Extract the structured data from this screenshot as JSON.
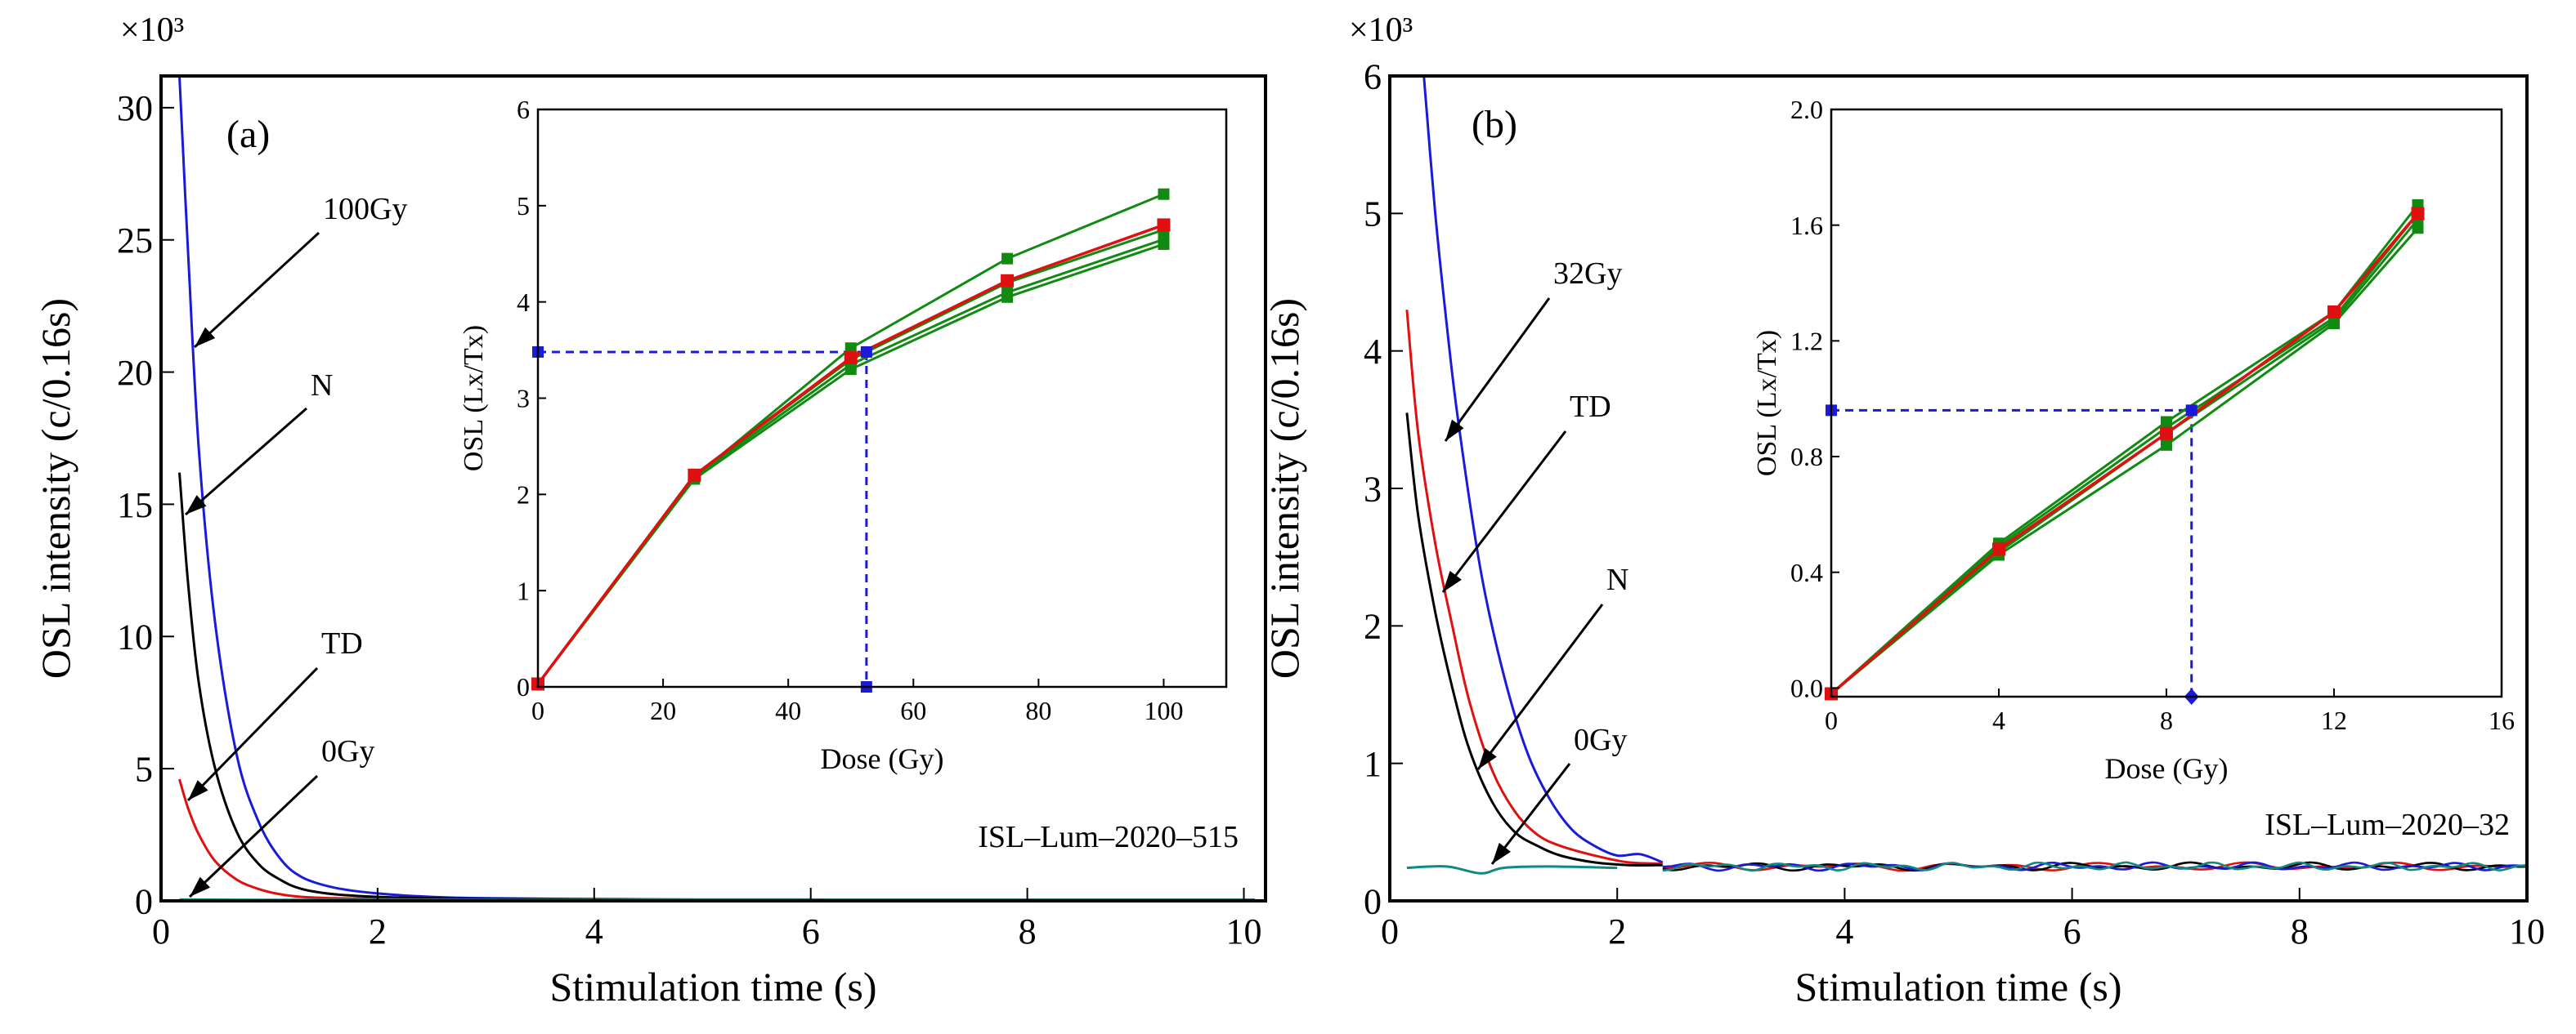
{
  "chart_data": [
    {
      "type": "line",
      "panel_label": "(a)",
      "xlabel": "Stimulation time (s)",
      "ylabel": "OSL intensity (c/0.16s)",
      "y_multiplier": "×10³",
      "xlim": [
        0,
        10.2
      ],
      "ylim": [
        0,
        31.2
      ],
      "xticks": [
        0,
        2,
        4,
        6,
        8,
        10
      ],
      "yticks": [
        0,
        5,
        10,
        15,
        20,
        25,
        30
      ],
      "sample_id": "ISL–Lum–2020–515",
      "colors": {
        "100Gy": "#1a1ad8",
        "N": "#000000",
        "TD": "#e01010",
        "0Gy": "#108a80"
      },
      "series": [
        {
          "name": "100Gy",
          "color": "#1a1ad8",
          "x": [
            0.17,
            0.25,
            0.35,
            0.5,
            0.7,
            0.9,
            1.1,
            1.3,
            1.6,
            2.0,
            2.5,
            3,
            4,
            5,
            6,
            7,
            8,
            9,
            10.1
          ],
          "y": [
            31.2,
            24.5,
            17,
            10.5,
            5.5,
            3.0,
            1.6,
            0.9,
            0.5,
            0.28,
            0.15,
            0.1,
            0.07,
            0.05,
            0.05,
            0.04,
            0.04,
            0.04,
            0.04
          ]
        },
        {
          "name": "N",
          "color": "#000000",
          "x": [
            0.17,
            0.25,
            0.35,
            0.5,
            0.7,
            0.9,
            1.1,
            1.3,
            1.6,
            2.0,
            2.5,
            3,
            4,
            5,
            6,
            8,
            10.1
          ],
          "y": [
            16.2,
            12.0,
            8.2,
            5.0,
            2.6,
            1.4,
            0.8,
            0.45,
            0.25,
            0.15,
            0.1,
            0.07,
            0.05,
            0.04,
            0.04,
            0.04,
            0.04
          ]
        },
        {
          "name": "TD",
          "color": "#e01010",
          "x": [
            0.17,
            0.25,
            0.35,
            0.5,
            0.7,
            0.9,
            1.1,
            1.3,
            1.6,
            2.0,
            2.5,
            3,
            4,
            6,
            8,
            10.1
          ],
          "y": [
            4.6,
            3.5,
            2.5,
            1.5,
            0.8,
            0.45,
            0.25,
            0.15,
            0.1,
            0.07,
            0.05,
            0.04,
            0.04,
            0.04,
            0.04,
            0.04
          ]
        },
        {
          "name": "0Gy",
          "color": "#108a80",
          "x": [
            0.17,
            1,
            2,
            4,
            6,
            8,
            10.1
          ],
          "y": [
            0.05,
            0.04,
            0.04,
            0.04,
            0.04,
            0.04,
            0.04
          ]
        }
      ],
      "curve_labels": [
        "100Gy",
        "N",
        "TD",
        "0Gy"
      ],
      "inset": {
        "type": "line",
        "xlabel": "Dose (Gy)",
        "ylabel": "OSL (Lx/Tx)",
        "xlim": [
          0,
          110
        ],
        "ylim": [
          0,
          6
        ],
        "xticks": [
          0,
          20,
          40,
          60,
          80,
          100
        ],
        "yticks": [
          0,
          1,
          2,
          3,
          4,
          5,
          6
        ],
        "doses": [
          0,
          25,
          50,
          75,
          100
        ],
        "green_series": [
          [
            0.03,
            2.18,
            3.52,
            4.45,
            5.12
          ],
          [
            0.03,
            2.2,
            3.4,
            4.2,
            4.75
          ],
          [
            0.03,
            2.18,
            3.35,
            4.1,
            4.65
          ],
          [
            0.03,
            2.16,
            3.3,
            4.05,
            4.6
          ]
        ],
        "red_series": [
          0.03,
          2.2,
          3.42,
          4.22,
          4.8
        ],
        "interpolation": {
          "dose": 52.5,
          "lxtx": 3.48
        },
        "colors": {
          "green": "#108a10",
          "red": "#e01010",
          "guide": "#1a1ad8"
        }
      }
    },
    {
      "type": "line",
      "panel_label": "(b)",
      "xlabel": "Stimulation time (s)",
      "ylabel": "OSL intensity (c/0.16s)",
      "y_multiplier": "×10³",
      "xlim": [
        0,
        10
      ],
      "ylim": [
        0,
        6
      ],
      "xticks": [
        0,
        2,
        4,
        6,
        8,
        10
      ],
      "yticks": [
        0,
        1,
        2,
        3,
        4,
        5,
        6
      ],
      "sample_id": "ISL–Lum–2020–32",
      "colors": {
        "32Gy": "#1a1ad8",
        "TD": "#e01010",
        "N": "#000000",
        "0Gy": "#108a80"
      },
      "series": [
        {
          "name": "32Gy",
          "color": "#1a1ad8",
          "x": [
            0.3,
            0.4,
            0.5,
            0.6,
            0.8,
            1.0,
            1.2,
            1.4,
            1.6,
            1.8,
            2.0,
            2.2,
            2.4
          ],
          "y": [
            6.0,
            5.0,
            4.2,
            3.5,
            2.4,
            1.65,
            1.1,
            0.75,
            0.52,
            0.4,
            0.33,
            0.34,
            0.28
          ]
        },
        {
          "name": "TD",
          "color": "#e01010",
          "x": [
            0.15,
            0.25,
            0.4,
            0.55,
            0.7,
            0.9,
            1.1,
            1.3,
            1.5,
            1.8,
            2.1,
            2.4
          ],
          "y": [
            4.3,
            3.4,
            2.6,
            2.0,
            1.45,
            0.95,
            0.65,
            0.48,
            0.4,
            0.33,
            0.28,
            0.27
          ]
        },
        {
          "name": "N",
          "color": "#000000",
          "x": [
            0.15,
            0.25,
            0.4,
            0.55,
            0.7,
            0.9,
            1.1,
            1.3,
            1.5,
            1.8,
            2.1,
            2.4
          ],
          "y": [
            3.55,
            2.8,
            2.1,
            1.55,
            1.1,
            0.72,
            0.5,
            0.4,
            0.33,
            0.28,
            0.26,
            0.26
          ]
        },
        {
          "name": "0Gy",
          "color": "#108a80",
          "x": [
            0.15,
            0.5,
            0.8,
            1.0,
            1.4,
            2.0
          ],
          "y": [
            0.24,
            0.25,
            0.2,
            0.24,
            0.25,
            0.24
          ]
        }
      ],
      "noise_band": {
        "from_x": 2.4,
        "to_x": 10,
        "level": 0.25,
        "amplitude": 0.03
      },
      "curve_labels": [
        "32Gy",
        "TD",
        "N",
        "0Gy"
      ],
      "inset": {
        "type": "line",
        "xlabel": "Dose (Gy)",
        "ylabel": "OSL (Lx/Tx)",
        "xlim": [
          0,
          16
        ],
        "ylim": [
          -0.03,
          2.0
        ],
        "xticks": [
          0,
          4,
          8,
          12,
          16
        ],
        "yticks": [
          "0.0",
          "0.4",
          "0.8",
          "1.2",
          "1.6",
          "2.0"
        ],
        "doses": [
          0,
          4,
          8,
          12,
          14
        ],
        "green_series": [
          [
            -0.02,
            0.5,
            0.92,
            1.3,
            1.67
          ],
          [
            -0.02,
            0.49,
            0.9,
            1.28,
            1.64
          ],
          [
            -0.02,
            0.47,
            0.88,
            1.27,
            1.62
          ],
          [
            -0.02,
            0.46,
            0.84,
            1.26,
            1.59
          ]
        ],
        "red_series": [
          -0.02,
          0.48,
          0.88,
          1.3,
          1.64
        ],
        "interpolation": {
          "dose": 8.6,
          "lxtx": 0.96
        },
        "colors": {
          "green": "#108a10",
          "red": "#e01010",
          "guide": "#1a1ad8"
        }
      }
    }
  ]
}
